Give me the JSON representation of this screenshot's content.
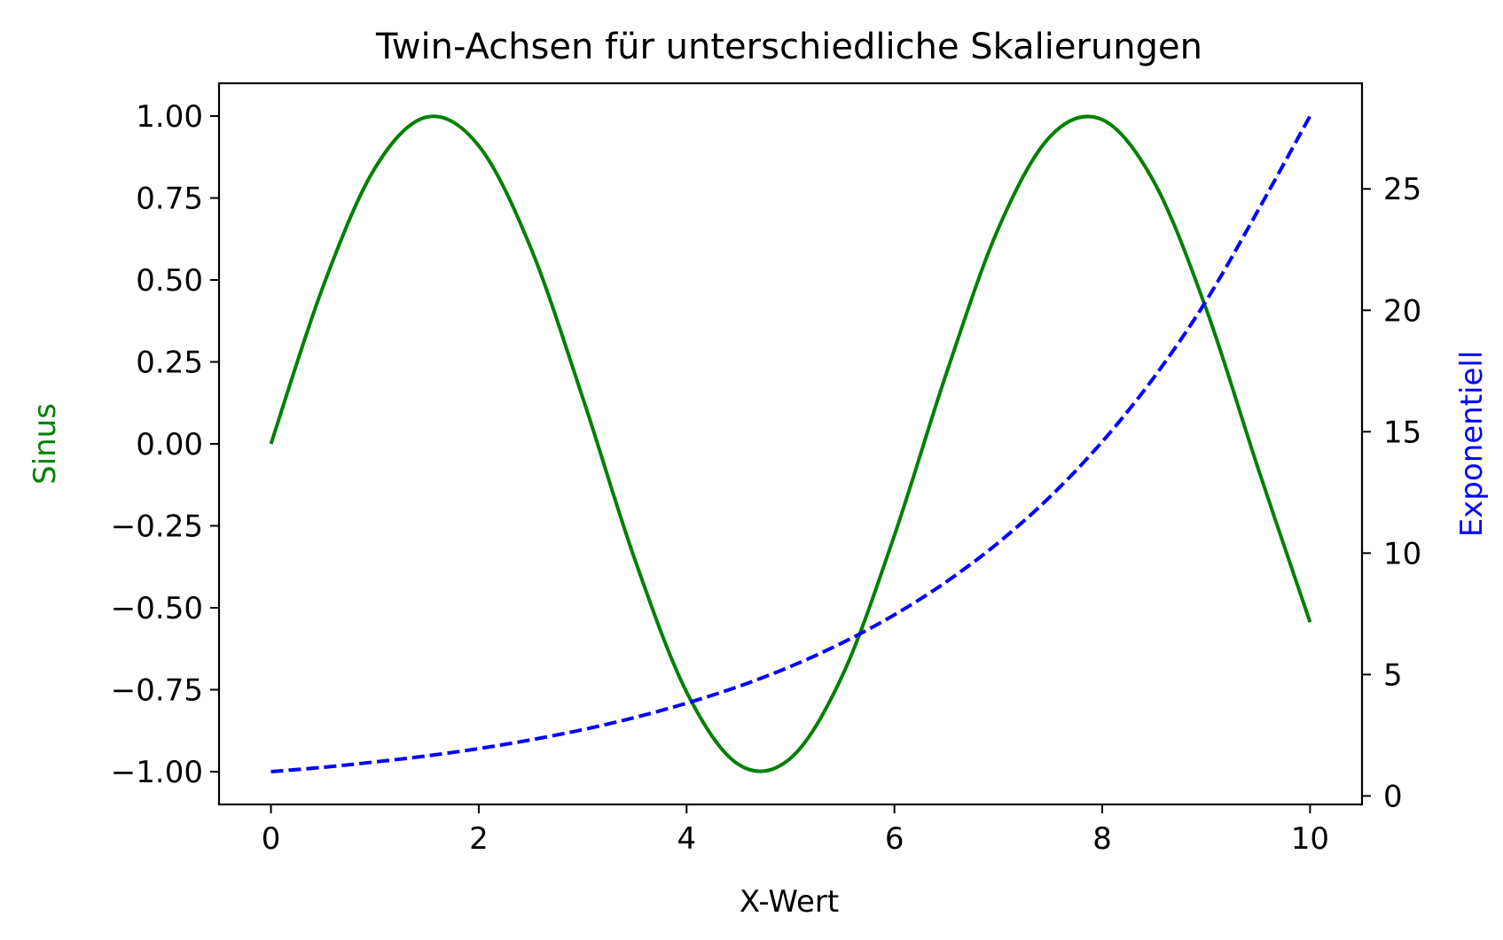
{
  "chart_data": {
    "type": "line",
    "title": "Twin-Achsen für unterschiedliche Skalierungen",
    "xlabel": "X-Wert",
    "ylabel_left": "Sinus",
    "ylabel_right": "Exponentiell",
    "xlim": [
      -0.5,
      10.5
    ],
    "ylim_left": [
      -1.1,
      1.1
    ],
    "ylim_right": [
      -0.35,
      29.35
    ],
    "x_ticks": [
      "0",
      "2",
      "4",
      "6",
      "8",
      "10"
    ],
    "y_left_ticks": [
      "1.00",
      "0.75",
      "0.50",
      "0.25",
      "0.00",
      "−0.25",
      "−0.50",
      "−0.75",
      "−1.00"
    ],
    "y_right_ticks": [
      "0",
      "5",
      "10",
      "15",
      "20",
      "25"
    ],
    "grid": false,
    "series": [
      {
        "axis": "left",
        "color": "#008000",
        "style": "solid",
        "x": [
          0,
          0.5,
          1,
          1.5,
          2,
          2.5,
          3,
          3.5,
          4,
          4.5,
          5,
          5.5,
          6,
          6.5,
          7,
          7.5,
          8,
          8.5,
          9,
          9.5,
          10
        ],
        "values": [
          0,
          0.479,
          0.841,
          0.997,
          0.909,
          0.598,
          0.141,
          -0.351,
          -0.757,
          -0.978,
          -0.959,
          -0.706,
          -0.279,
          0.215,
          0.657,
          0.938,
          0.989,
          0.798,
          0.412,
          -0.075,
          -0.544
        ]
      },
      {
        "axis": "right",
        "color": "#0000ff",
        "style": "dashed",
        "x": [
          0,
          0.5,
          1,
          1.5,
          2,
          2.5,
          3,
          3.5,
          4,
          4.5,
          5,
          5.5,
          6,
          6.5,
          7,
          7.5,
          8,
          8.5,
          9,
          9.5,
          10
        ],
        "values": [
          1,
          1.18,
          1.4,
          1.65,
          1.95,
          2.31,
          2.73,
          3.23,
          3.82,
          4.51,
          5.33,
          6.31,
          7.46,
          8.82,
          10.43,
          12.33,
          14.59,
          17.25,
          20.39,
          24.12,
          28.0
        ]
      }
    ]
  }
}
